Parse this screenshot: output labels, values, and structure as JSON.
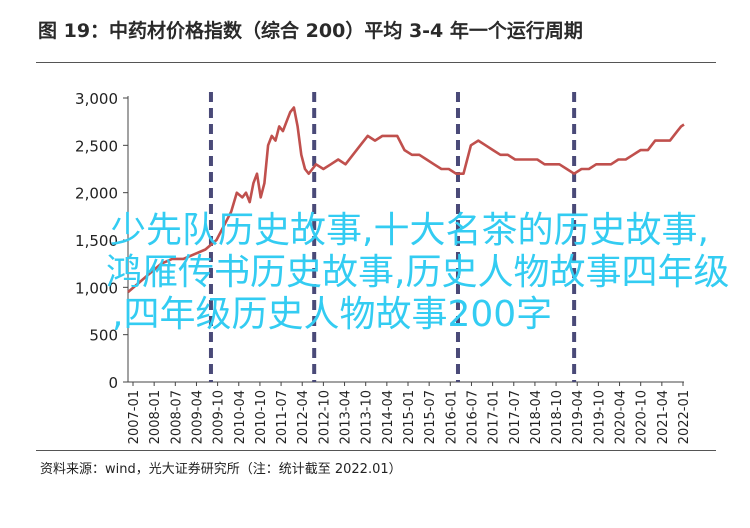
{
  "header": {
    "title": "图 19：中药材价格指数（综合 200）平均 3-4 年一个运行周期"
  },
  "footer": {
    "source": "资料来源：wind，光大证券研究所（注：统计截至 2022.01）"
  },
  "overlay": {
    "line1": "少先队历史故事,十大名茶的历史故事,",
    "line2": "鸿雁传书历史故事,历史人物故事四年级",
    "line3": ",四年级历史人物故事200字"
  },
  "chart_data": {
    "type": "line",
    "ylim": [
      0,
      3000
    ],
    "yticks": [
      0,
      500,
      1000,
      1500,
      2000,
      2500,
      3000
    ],
    "ytick_labels": [
      "0",
      "500",
      "1,000",
      "1,500",
      "2,000",
      "2,500",
      "3,000"
    ],
    "xtick_labels": [
      "2007-01",
      "2008-01",
      "2008-07",
      "2009-04",
      "2009-10",
      "2010-04",
      "2010-10",
      "2011-07",
      "2012-04",
      "2012-10",
      "2013-04",
      "2013-10",
      "2014-04",
      "2015-01",
      "2015-07",
      "2016-01",
      "2016-07",
      "2017-01",
      "2017-07",
      "2018-04",
      "2018-10",
      "2019-04",
      "2019-10",
      "2020-04",
      "2020-10",
      "2021-04",
      "2022-01"
    ],
    "xlim": [
      2007.0,
      2022.08
    ],
    "cycle_markers": [
      2009.25,
      2012.05,
      2015.95,
      2019.1
    ],
    "series": [
      {
        "color": "#c0504d",
        "x": [
          2007.0,
          2007.3,
          2007.6,
          2007.9,
          2008.2,
          2008.5,
          2008.8,
          2009.1,
          2009.4,
          2009.6,
          2009.8,
          2009.95,
          2010.1,
          2010.2,
          2010.3,
          2010.4,
          2010.5,
          2010.6,
          2010.7,
          2010.8,
          2010.9,
          2011.0,
          2011.1,
          2011.2,
          2011.3,
          2011.4,
          2011.5,
          2011.6,
          2011.7,
          2011.8,
          2011.9,
          2012.0,
          2012.1,
          2012.3,
          2012.5,
          2012.7,
          2012.9,
          2013.1,
          2013.3,
          2013.5,
          2013.7,
          2013.9,
          2014.1,
          2014.3,
          2014.5,
          2014.7,
          2014.9,
          2015.1,
          2015.3,
          2015.5,
          2015.7,
          2015.9,
          2016.1,
          2016.3,
          2016.5,
          2016.7,
          2016.9,
          2017.1,
          2017.3,
          2017.5,
          2017.7,
          2017.9,
          2018.1,
          2018.3,
          2018.5,
          2018.7,
          2018.9,
          2019.1,
          2019.3,
          2019.5,
          2019.7,
          2019.9,
          2020.1,
          2020.3,
          2020.5,
          2020.7,
          2020.9,
          2021.1,
          2021.3,
          2021.5,
          2021.7,
          2021.9,
          2022.0,
          2022.08
        ],
        "y": [
          950,
          1050,
          1150,
          1250,
          1300,
          1300,
          1350,
          1400,
          1500,
          1650,
          1800,
          2000,
          1950,
          2000,
          1900,
          2100,
          2200,
          1950,
          2100,
          2500,
          2600,
          2550,
          2700,
          2650,
          2750,
          2850,
          2900,
          2700,
          2400,
          2250,
          2200,
          2250,
          2300,
          2250,
          2300,
          2350,
          2300,
          2400,
          2500,
          2600,
          2550,
          2600,
          2600,
          2600,
          2450,
          2400,
          2400,
          2350,
          2300,
          2250,
          2250,
          2200,
          2200,
          2500,
          2550,
          2500,
          2450,
          2400,
          2400,
          2350,
          2350,
          2350,
          2350,
          2300,
          2300,
          2300,
          2250,
          2200,
          2250,
          2250,
          2300,
          2300,
          2300,
          2350,
          2350,
          2400,
          2450,
          2450,
          2550,
          2550,
          2550,
          2650,
          2700,
          2720
        ]
      }
    ]
  }
}
